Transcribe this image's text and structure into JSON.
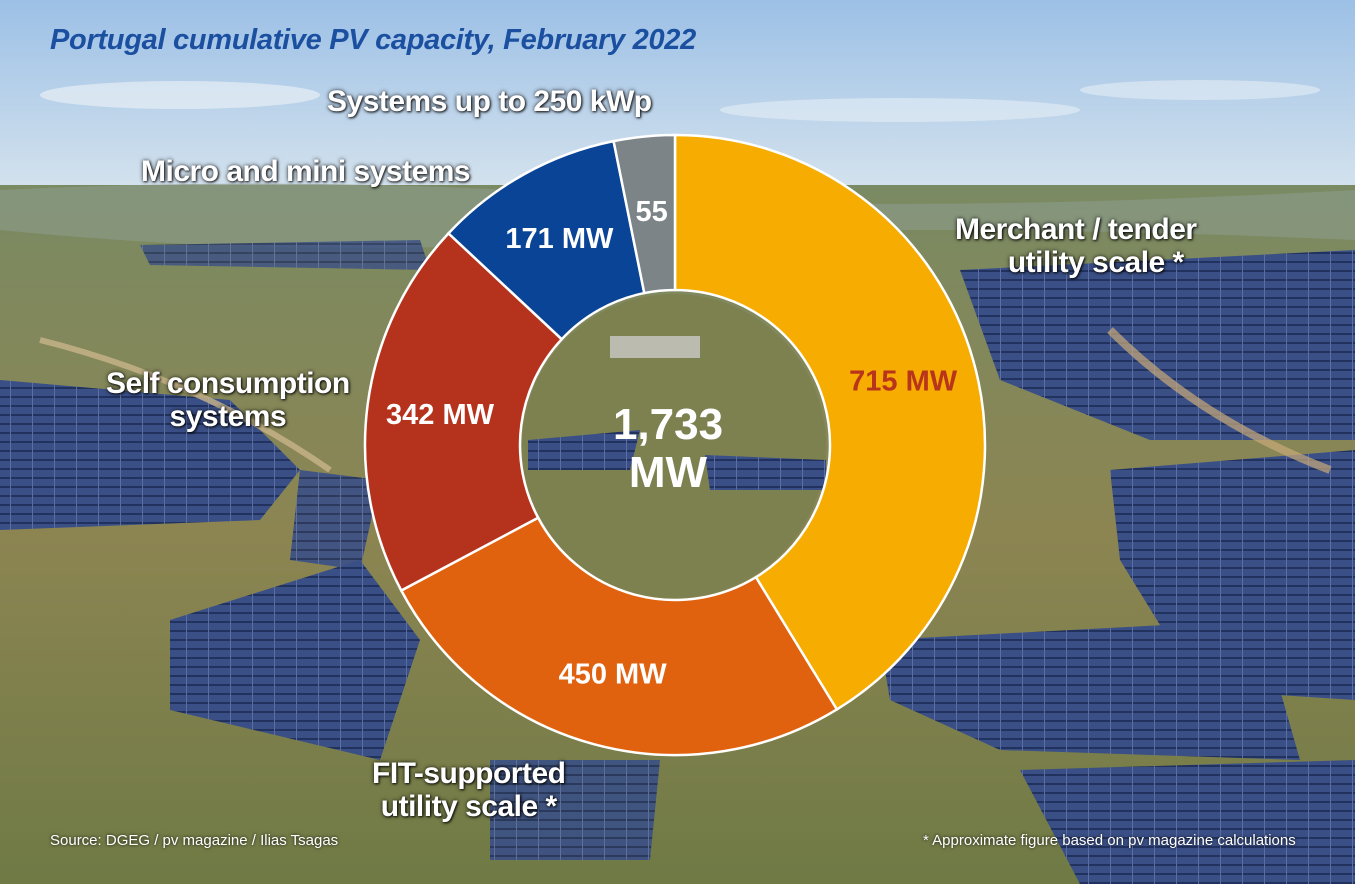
{
  "title": "Portugal cumulative PV capacity, February 2022",
  "chart_data": {
    "type": "pie",
    "donut": true,
    "center_label": [
      "1,733",
      "MW"
    ],
    "series": [
      {
        "name": "Merchant / tender utility scale *",
        "value": 715,
        "label": "715 MW",
        "color": "#f6ac00",
        "label_color": "#b8341b"
      },
      {
        "name": "FIT-supported utility scale *",
        "value": 450,
        "label": "450 MW",
        "color": "#e0620f",
        "label_color": "#ffffff"
      },
      {
        "name": "Self consumption systems",
        "value": 342,
        "label": "342 MW",
        "color": "#b5331d",
        "label_color": "#ffffff"
      },
      {
        "name": "Micro and mini systems",
        "value": 171,
        "label": "171 MW",
        "color": "#0a4496",
        "label_color": "#ffffff"
      },
      {
        "name": "Systems up to 250 kWp",
        "value": 55,
        "label": "55",
        "color": "#7c8487",
        "label_color": "#ffffff"
      }
    ]
  },
  "categories": {
    "merchant_line1": "Merchant / tender",
    "merchant_line2": "utility scale *",
    "fit_line1": "FIT-supported",
    "fit_line2": "utility scale *",
    "self_line1": "Self consumption",
    "self_line2": "systems",
    "micro": "Micro and mini systems",
    "small": "Systems up to 250 kWp"
  },
  "footer": {
    "source": "Source: DGEG / pv magazine / Ilias Tsagas",
    "note": "* Approximate figure based on pv magazine calculations"
  },
  "colors": {
    "title": "#1b4fa0"
  }
}
